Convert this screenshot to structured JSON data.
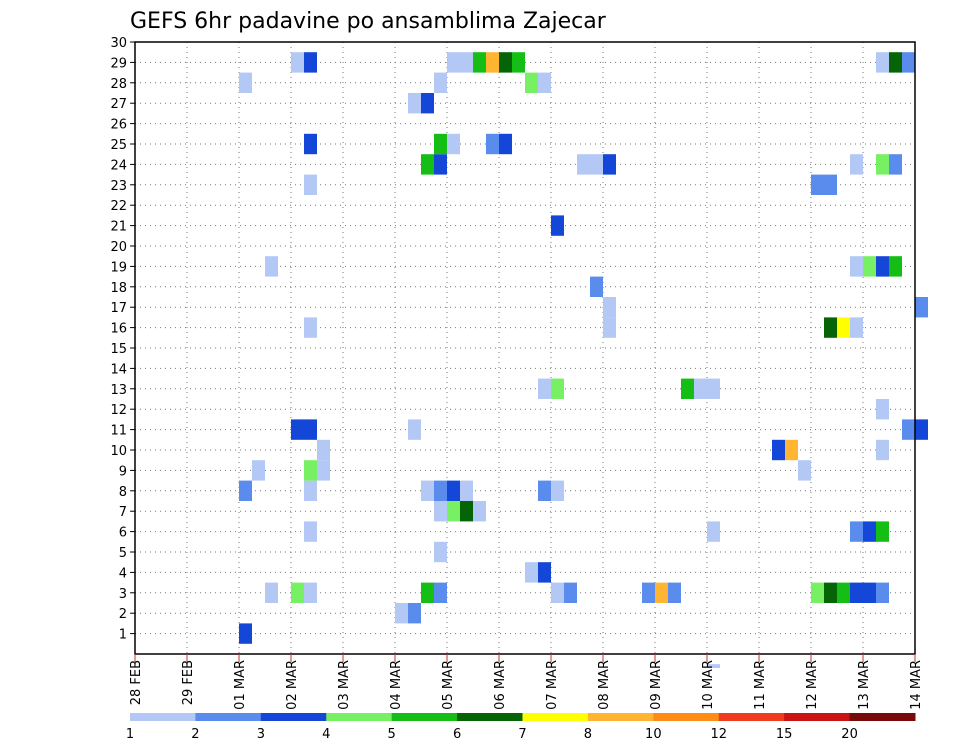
{
  "chart_data": {
    "type": "heatmap",
    "title": "GEFS 6hr padavine po ansamblima Zajecar",
    "xlabel": "",
    "ylabel": "",
    "x_tick_labels": [
      "28 FEB",
      "29 FEB",
      "01 MAR",
      "02 MAR",
      "03 MAR",
      "04 MAR",
      "05 MAR",
      "06 MAR",
      "07 MAR",
      "08 MAR",
      "09 MAR",
      "10 MAR",
      "11 MAR",
      "12 MAR",
      "13 MAR",
      "14 MAR"
    ],
    "y_tick_labels": [
      "1",
      "2",
      "3",
      "4",
      "5",
      "6",
      "7",
      "8",
      "9",
      "10",
      "11",
      "12",
      "13",
      "14",
      "15",
      "16",
      "17",
      "18",
      "19",
      "20",
      "21",
      "22",
      "23",
      "24",
      "25",
      "26",
      "27",
      "28",
      "29",
      "30"
    ],
    "xlim_days": [
      0,
      15
    ],
    "ylim_member": [
      0,
      30
    ],
    "grid": true,
    "legend_position": "bottom",
    "legend": {
      "labels": [
        "1",
        "2",
        "3",
        "4",
        "5",
        "6",
        "7",
        "8",
        "10",
        "12",
        "15",
        "20"
      ],
      "colors": [
        "#b4c8f5",
        "#5a8ced",
        "#1446d7",
        "#78f064",
        "#14be14",
        "#056405",
        "#ffff00",
        "#ffb432",
        "#ff8c14",
        "#f03c1e",
        "#c81414",
        "#780a0a"
      ]
    },
    "cell_note": "x = start time in days after 28 FEB 00z (6-hour steps), y = ensemble member, level = index into legend colors",
    "cells": [
      {
        "x": 2.0,
        "y": 1,
        "level": 2
      },
      {
        "x": 5.0,
        "y": 2,
        "level": 0
      },
      {
        "x": 5.25,
        "y": 2,
        "level": 1
      },
      {
        "x": 2.5,
        "y": 3,
        "level": 0
      },
      {
        "x": 3.0,
        "y": 3,
        "level": 3
      },
      {
        "x": 3.25,
        "y": 3,
        "level": 0
      },
      {
        "x": 5.5,
        "y": 3,
        "level": 4
      },
      {
        "x": 5.75,
        "y": 3,
        "level": 1
      },
      {
        "x": 8.0,
        "y": 3,
        "level": 0
      },
      {
        "x": 8.25,
        "y": 3,
        "level": 1
      },
      {
        "x": 9.75,
        "y": 3,
        "level": 1
      },
      {
        "x": 10.0,
        "y": 3,
        "level": 7
      },
      {
        "x": 10.25,
        "y": 3,
        "level": 1
      },
      {
        "x": 13.0,
        "y": 3,
        "level": 3
      },
      {
        "x": 13.25,
        "y": 3,
        "level": 5
      },
      {
        "x": 13.5,
        "y": 3,
        "level": 4
      },
      {
        "x": 13.75,
        "y": 3,
        "level": 2
      },
      {
        "x": 14.0,
        "y": 3,
        "level": 2
      },
      {
        "x": 14.25,
        "y": 3,
        "level": 1
      },
      {
        "x": 7.5,
        "y": 4,
        "level": 0
      },
      {
        "x": 7.75,
        "y": 4,
        "level": 2
      },
      {
        "x": 5.75,
        "y": 5,
        "level": 0
      },
      {
        "x": 3.25,
        "y": 6,
        "level": 0
      },
      {
        "x": 11.0,
        "y": 6,
        "level": 0
      },
      {
        "x": 13.75,
        "y": 6,
        "level": 1
      },
      {
        "x": 14.0,
        "y": 6,
        "level": 2
      },
      {
        "x": 14.25,
        "y": 6,
        "level": 4
      },
      {
        "x": 5.75,
        "y": 7,
        "level": 0
      },
      {
        "x": 6.0,
        "y": 7,
        "level": 3
      },
      {
        "x": 6.25,
        "y": 7,
        "level": 5
      },
      {
        "x": 6.5,
        "y": 7,
        "level": 0
      },
      {
        "x": 2.0,
        "y": 8,
        "level": 1
      },
      {
        "x": 3.25,
        "y": 8,
        "level": 0
      },
      {
        "x": 5.5,
        "y": 8,
        "level": 0
      },
      {
        "x": 5.75,
        "y": 8,
        "level": 1
      },
      {
        "x": 6.0,
        "y": 8,
        "level": 2
      },
      {
        "x": 6.25,
        "y": 8,
        "level": 0
      },
      {
        "x": 7.75,
        "y": 8,
        "level": 1
      },
      {
        "x": 8.0,
        "y": 8,
        "level": 0
      },
      {
        "x": 2.25,
        "y": 9,
        "level": 0
      },
      {
        "x": 3.25,
        "y": 9,
        "level": 3
      },
      {
        "x": 3.5,
        "y": 9,
        "level": 0
      },
      {
        "x": 12.75,
        "y": 9,
        "level": 0
      },
      {
        "x": 3.5,
        "y": 10,
        "level": 0
      },
      {
        "x": 12.25,
        "y": 10,
        "level": 2
      },
      {
        "x": 12.5,
        "y": 10,
        "level": 7
      },
      {
        "x": 14.25,
        "y": 10,
        "level": 0
      },
      {
        "x": 3.0,
        "y": 11,
        "level": 2
      },
      {
        "x": 3.25,
        "y": 11,
        "level": 2
      },
      {
        "x": 5.25,
        "y": 11,
        "level": 0
      },
      {
        "x": 14.75,
        "y": 11,
        "level": 1
      },
      {
        "x": 15.0,
        "y": 11,
        "level": 2
      },
      {
        "x": 14.25,
        "y": 12,
        "level": 0
      },
      {
        "x": 7.75,
        "y": 13,
        "level": 0
      },
      {
        "x": 8.0,
        "y": 13,
        "level": 3
      },
      {
        "x": 10.5,
        "y": 13,
        "level": 4
      },
      {
        "x": 10.75,
        "y": 13,
        "level": 0
      },
      {
        "x": 11.0,
        "y": 13,
        "level": 0
      },
      {
        "x": 3.25,
        "y": 16,
        "level": 0
      },
      {
        "x": 9.0,
        "y": 16,
        "level": 0
      },
      {
        "x": 13.25,
        "y": 16,
        "level": 5
      },
      {
        "x": 13.5,
        "y": 16,
        "level": 6
      },
      {
        "x": 13.75,
        "y": 16,
        "level": 0
      },
      {
        "x": 9.0,
        "y": 17,
        "level": 0
      },
      {
        "x": 15.0,
        "y": 17,
        "level": 1
      },
      {
        "x": 8.75,
        "y": 18,
        "level": 1
      },
      {
        "x": 2.5,
        "y": 19,
        "level": 0
      },
      {
        "x": 13.75,
        "y": 19,
        "level": 0
      },
      {
        "x": 14.0,
        "y": 19,
        "level": 3
      },
      {
        "x": 14.25,
        "y": 19,
        "level": 2
      },
      {
        "x": 14.5,
        "y": 19,
        "level": 4
      },
      {
        "x": 8.0,
        "y": 21,
        "level": 2
      },
      {
        "x": 3.25,
        "y": 23,
        "level": 0
      },
      {
        "x": 13.0,
        "y": 23,
        "level": 1
      },
      {
        "x": 13.25,
        "y": 23,
        "level": 1
      },
      {
        "x": 5.5,
        "y": 24,
        "level": 4
      },
      {
        "x": 5.75,
        "y": 24,
        "level": 2
      },
      {
        "x": 8.5,
        "y": 24,
        "level": 0
      },
      {
        "x": 8.75,
        "y": 24,
        "level": 0
      },
      {
        "x": 9.0,
        "y": 24,
        "level": 2
      },
      {
        "x": 13.75,
        "y": 24,
        "level": 0
      },
      {
        "x": 14.25,
        "y": 24,
        "level": 3
      },
      {
        "x": 14.5,
        "y": 24,
        "level": 1
      },
      {
        "x": 3.25,
        "y": 25,
        "level": 2
      },
      {
        "x": 5.75,
        "y": 25,
        "level": 4
      },
      {
        "x": 6.0,
        "y": 25,
        "level": 0
      },
      {
        "x": 6.75,
        "y": 25,
        "level": 1
      },
      {
        "x": 7.0,
        "y": 25,
        "level": 2
      },
      {
        "x": 5.25,
        "y": 27,
        "level": 0
      },
      {
        "x": 5.5,
        "y": 27,
        "level": 2
      },
      {
        "x": 2.0,
        "y": 28,
        "level": 0
      },
      {
        "x": 5.75,
        "y": 28,
        "level": 0
      },
      {
        "x": 7.5,
        "y": 28,
        "level": 3
      },
      {
        "x": 7.75,
        "y": 28,
        "level": 0
      },
      {
        "x": 3.0,
        "y": 29,
        "level": 0
      },
      {
        "x": 3.25,
        "y": 29,
        "level": 2
      },
      {
        "x": 6.0,
        "y": 29,
        "level": 0
      },
      {
        "x": 6.25,
        "y": 29,
        "level": 0
      },
      {
        "x": 6.5,
        "y": 29,
        "level": 4
      },
      {
        "x": 6.75,
        "y": 29,
        "level": 7
      },
      {
        "x": 7.0,
        "y": 29,
        "level": 5
      },
      {
        "x": 7.25,
        "y": 29,
        "level": 4
      },
      {
        "x": 14.25,
        "y": 29,
        "level": 0
      },
      {
        "x": 14.5,
        "y": 29,
        "level": 5
      },
      {
        "x": 14.75,
        "y": 29,
        "level": 1
      },
      {
        "x": 11.0,
        "y": -1,
        "level": 0
      }
    ]
  }
}
